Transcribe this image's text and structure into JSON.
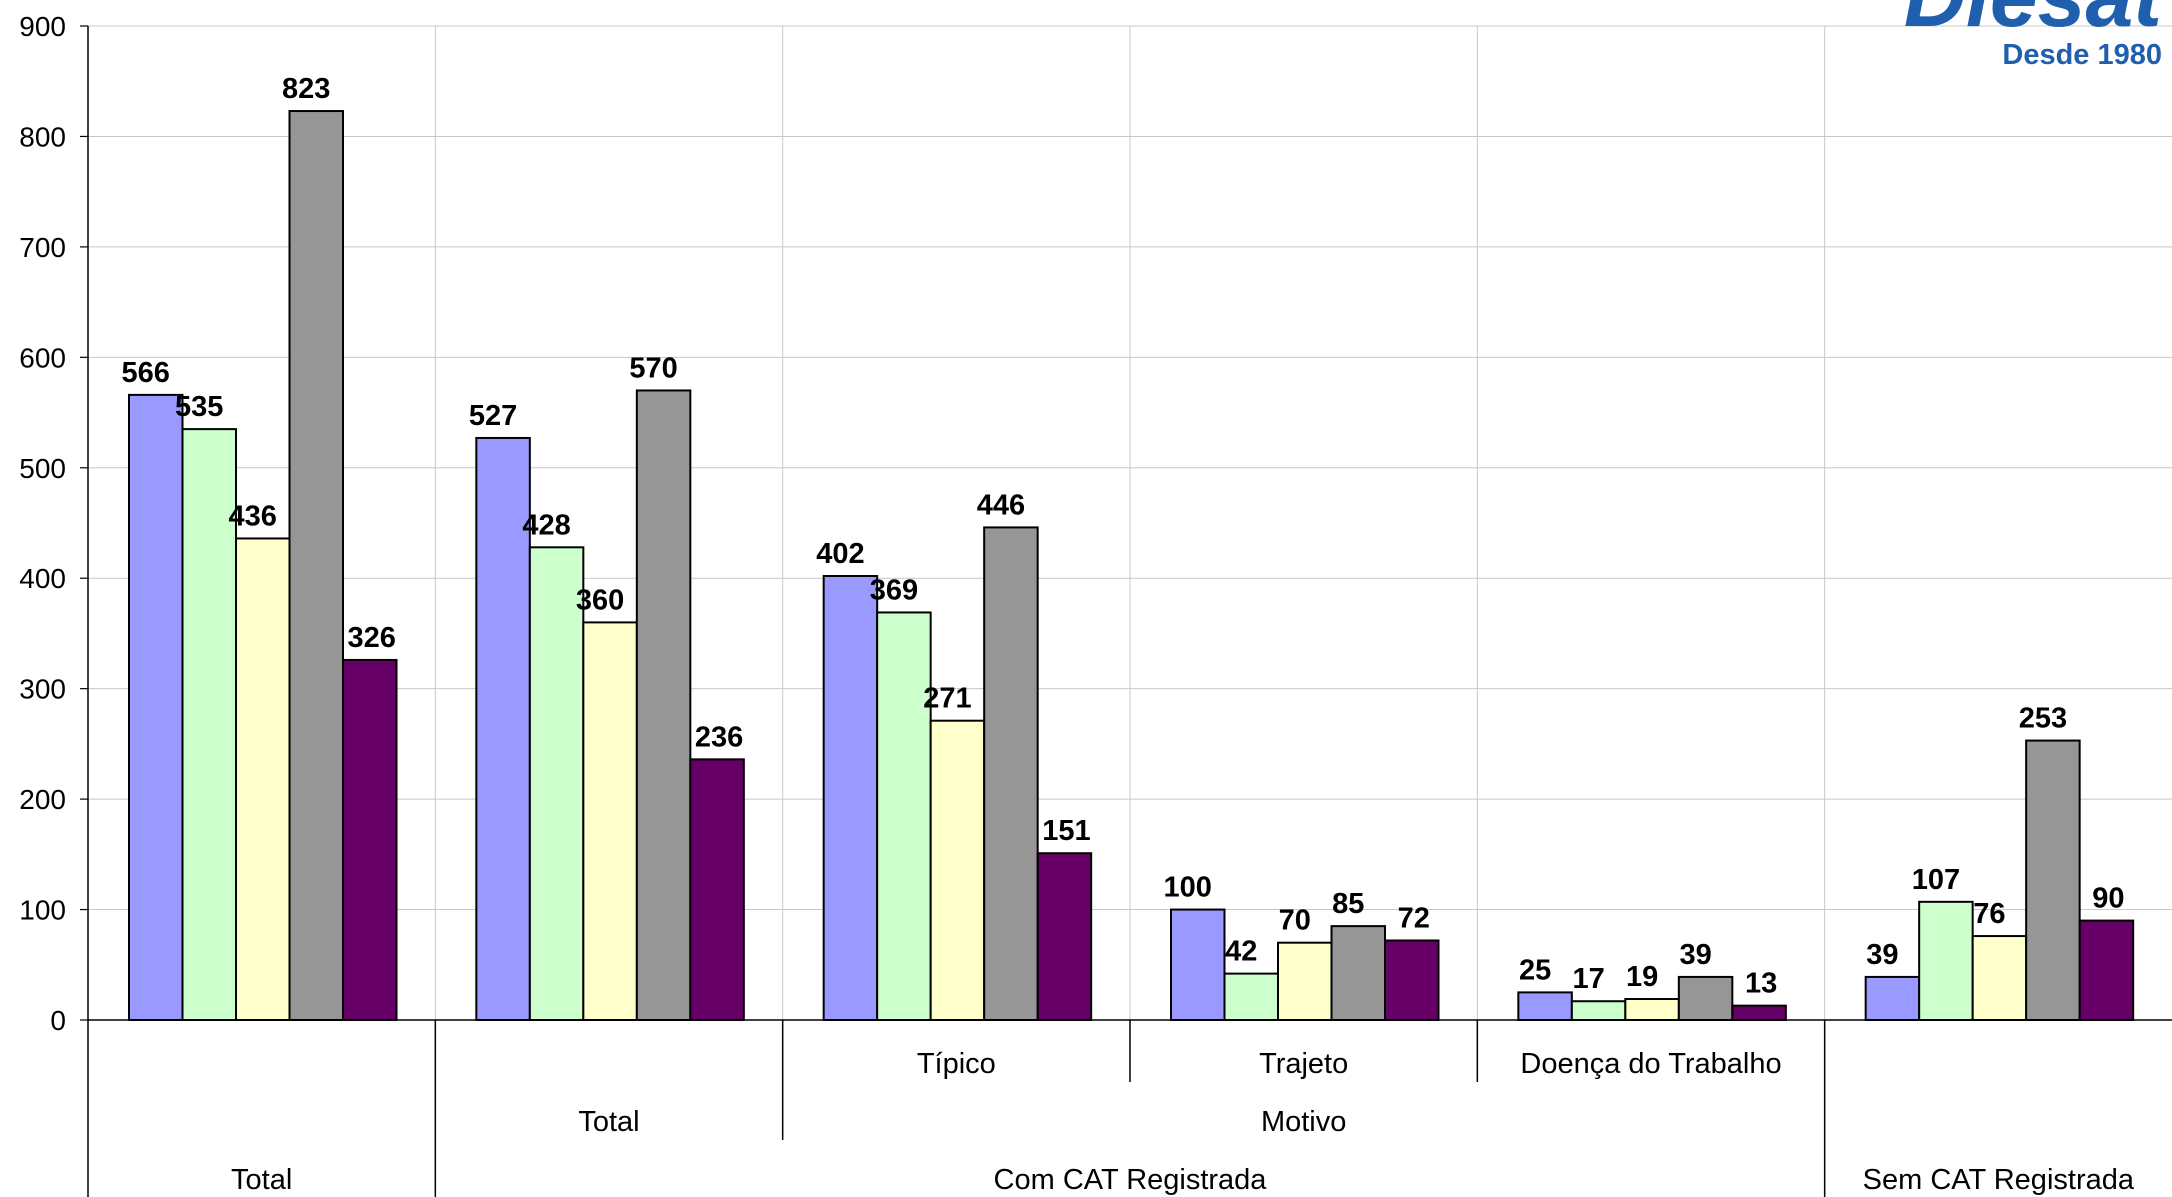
{
  "chart_data": {
    "type": "bar",
    "ylim": [
      0,
      900
    ],
    "yticks": [
      "0",
      "100",
      "200",
      "300",
      "400",
      "500",
      "600",
      "700",
      "800",
      "900"
    ],
    "grid": true,
    "legend": "none",
    "groups": [
      {
        "level1": "Total",
        "level2": "",
        "level3": "",
        "values": [
          566,
          535,
          436,
          823,
          326
        ]
      },
      {
        "level1": "Com CAT Registrada",
        "level2": "Total",
        "level3": "",
        "values": [
          527,
          428,
          360,
          570,
          236
        ]
      },
      {
        "level1": "Com CAT Registrada",
        "level2": "Motivo",
        "level3": "Típico",
        "values": [
          402,
          369,
          271,
          446,
          151
        ]
      },
      {
        "level1": "Com CAT Registrada",
        "level2": "Motivo",
        "level3": "Trajeto",
        "values": [
          100,
          42,
          70,
          85,
          72
        ]
      },
      {
        "level1": "Com CAT Registrada",
        "level2": "Motivo",
        "level3": "Doença do Trabalho",
        "values": [
          25,
          17,
          19,
          39,
          13
        ]
      },
      {
        "level1": "Sem CAT Registrada",
        "level2": "",
        "level3": "",
        "values": [
          39,
          107,
          76,
          253,
          90
        ]
      }
    ],
    "series_colors": [
      "#9999ff",
      "#ccffcc",
      "#ffffcc",
      "#969696",
      "#660066"
    ]
  },
  "axis_labels": {
    "level3": [
      {
        "text": "Típico",
        "group": 2
      },
      {
        "text": "Trajeto",
        "group": 3
      },
      {
        "text": "Doença do Trabalho",
        "group": 4
      }
    ],
    "level2": [
      {
        "text": "Total",
        "from": 1,
        "to": 1
      },
      {
        "text": "Motivo",
        "from": 2,
        "to": 4
      }
    ],
    "level1": [
      {
        "text": "Total",
        "from": 0,
        "to": 0
      },
      {
        "text": "Com CAT Registrada",
        "from": 1,
        "to": 4
      },
      {
        "text": "Sem CAT Registrada",
        "from": 5,
        "to": 5
      }
    ]
  },
  "logo": {
    "text": "Diesat",
    "tagline": "Desde 1980",
    "color": "#1f5fae"
  }
}
